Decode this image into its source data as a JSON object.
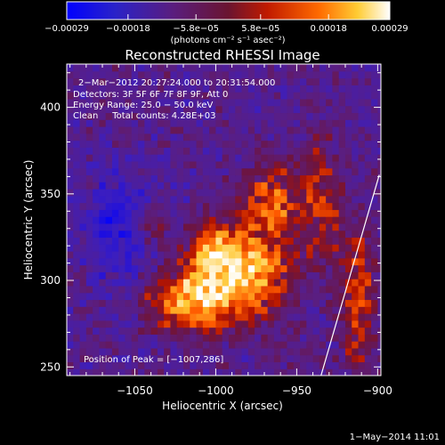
{
  "chart_data": {
    "type": "heatmap",
    "title": "Reconstructed RHESSI Image",
    "xlabel": "Heliocentric X (arcsec)",
    "ylabel": "Heliocentric Y (arcsec)",
    "xlim": [
      -1092,
      -898
    ],
    "ylim": [
      245,
      425
    ],
    "xticks": [
      -1050,
      -1000,
      -950,
      -900
    ],
    "xtick_labels": [
      "−1050",
      "−1000",
      "−950",
      "−900"
    ],
    "yticks": [
      250,
      300,
      350,
      400
    ],
    "ytick_labels": [
      "250",
      "300",
      "350",
      "400"
    ],
    "colorbar": {
      "range": [
        -0.00029,
        0.00029
      ],
      "ticks": [
        -0.00029,
        -0.00018,
        -5.8e-05,
        5.8e-05,
        0.00018,
        0.00029
      ],
      "tick_labels": [
        "−0.00029",
        "−0.00018",
        "−5.8e−05",
        "5.8e−05",
        "0.00018",
        "0.00029"
      ],
      "units_label": "(photons cm⁻² s⁻¹ asec⁻²)",
      "colors": [
        "#0000ff",
        "#3a1d8c",
        "#5a1d7e",
        "#8a1a1a",
        "#d21500",
        "#ff6a00",
        "#ffcc33",
        "#ffffff"
      ]
    },
    "annotations": [
      "2−Mar−2012 20:27:24.000 to 20:31:54.000",
      "Detectors: 3F 5F 6F 7F 8F 9F, Att 0",
      "Energy Range: 25.0 − 50.0 keV",
      "Clean     Total counts: 4.28E+03"
    ],
    "peak_label": "Position of Peak = [−1007,286]",
    "limb_line": [
      [
        -935,
        245
      ],
      [
        -899,
        361
      ]
    ]
  },
  "footer": {
    "date": "1−May−2014 11:01"
  }
}
